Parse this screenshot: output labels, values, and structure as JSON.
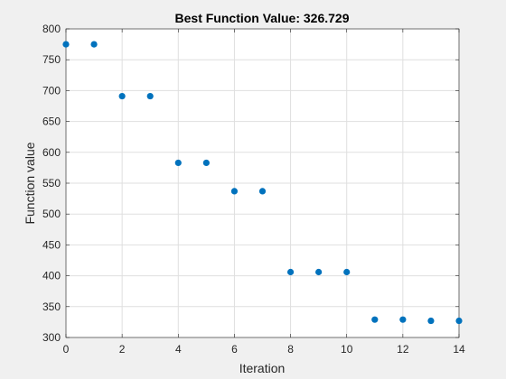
{
  "chart_data": {
    "type": "scatter",
    "title": "Best Function Value: 326.729",
    "xlabel": "Iteration",
    "ylabel": "Function value",
    "xlim": [
      0,
      14
    ],
    "ylim": [
      300,
      800
    ],
    "xticks": [
      0,
      2,
      4,
      6,
      8,
      10,
      12,
      14
    ],
    "yticks": [
      300,
      350,
      400,
      450,
      500,
      550,
      600,
      650,
      700,
      750,
      800
    ],
    "grid": true,
    "point_color": "#0072BD",
    "series": [
      {
        "x": [
          0,
          1,
          2,
          3,
          4,
          5,
          6,
          7,
          8,
          9,
          10,
          11,
          12,
          13,
          14
        ],
        "y": [
          775,
          775,
          691,
          691,
          583,
          583,
          537,
          537,
          406,
          406,
          406,
          329,
          329,
          327,
          327
        ]
      }
    ]
  }
}
